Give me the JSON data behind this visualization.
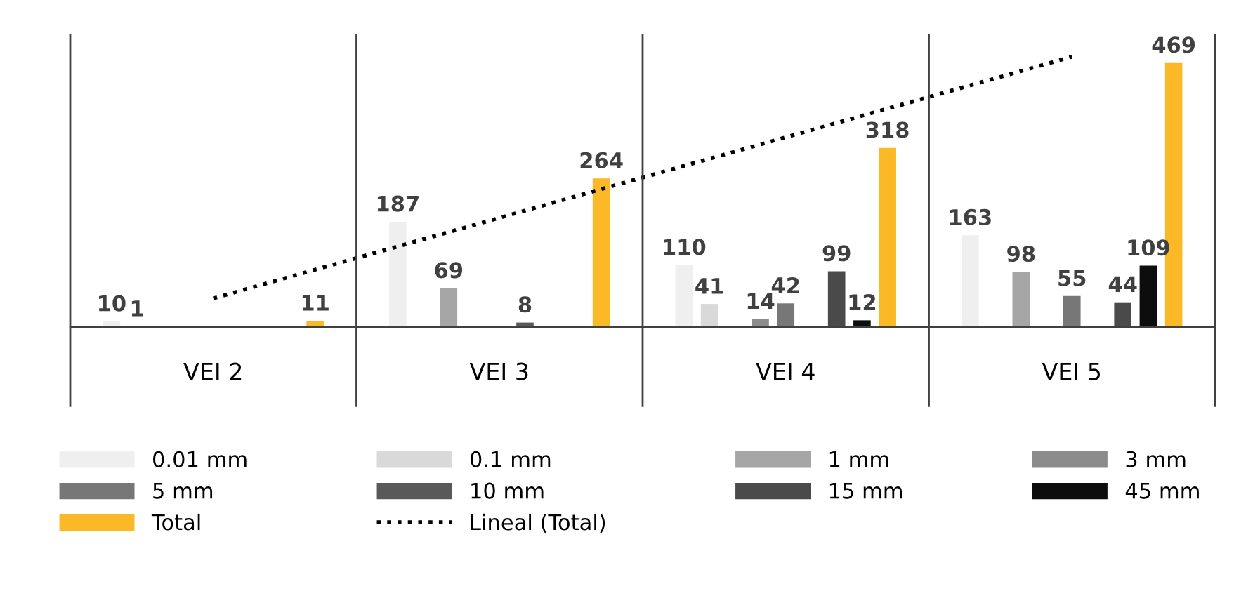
{
  "chart_data": {
    "type": "bar",
    "categories": [
      "VEI 2",
      "VEI 3",
      "VEI 4",
      "VEI 5"
    ],
    "series": [
      {
        "name": "0.01 mm",
        "color": "#efefef",
        "values": [
          10,
          187,
          110,
          163
        ],
        "value_labels": [
          "10",
          "187",
          "110",
          "163"
        ]
      },
      {
        "name": "0.1 mm",
        "color": "#d9d9d9",
        "values": [
          1,
          null,
          41,
          null
        ],
        "value_labels": [
          "1",
          null,
          "41",
          null
        ]
      },
      {
        "name": "1 mm",
        "color": "#a6a6a6",
        "values": [
          null,
          69,
          null,
          98
        ],
        "value_labels": [
          null,
          "69",
          null,
          "98"
        ]
      },
      {
        "name": "3 mm",
        "color": "#8c8c8c",
        "values": [
          null,
          null,
          14,
          null
        ],
        "value_labels": [
          null,
          null,
          "14",
          null
        ]
      },
      {
        "name": "5 mm",
        "color": "#777777",
        "values": [
          null,
          null,
          42,
          55
        ],
        "value_labels": [
          null,
          null,
          "42",
          "55"
        ]
      },
      {
        "name": "10 mm",
        "color": "#595959",
        "values": [
          null,
          8,
          null,
          null
        ],
        "value_labels": [
          null,
          "8",
          null,
          null
        ]
      },
      {
        "name": "15 mm",
        "color": "#4a4a4a",
        "values": [
          null,
          null,
          99,
          44
        ],
        "value_labels": [
          null,
          null,
          "99",
          "44"
        ]
      },
      {
        "name": "45 mm",
        "color": "#0d0d0d",
        "values": [
          null,
          null,
          12,
          109
        ],
        "value_labels": [
          null,
          null,
          "12",
          "109"
        ]
      },
      {
        "name": "Total",
        "color": "#fbb827",
        "values": [
          11,
          264,
          318,
          469
        ],
        "value_labels": [
          "11",
          "264",
          "318",
          "469"
        ]
      },
      {
        "name": "Lineal (Total)",
        "color": "#000000",
        "type": "line",
        "line_style": "dotted",
        "x": [
          "VEI 2",
          "VEI 3",
          "VEI 4",
          "VEI 5"
        ],
        "values": [
          51,
          194,
          337,
          480
        ]
      }
    ],
    "legend": "bottom",
    "grid": false
  }
}
